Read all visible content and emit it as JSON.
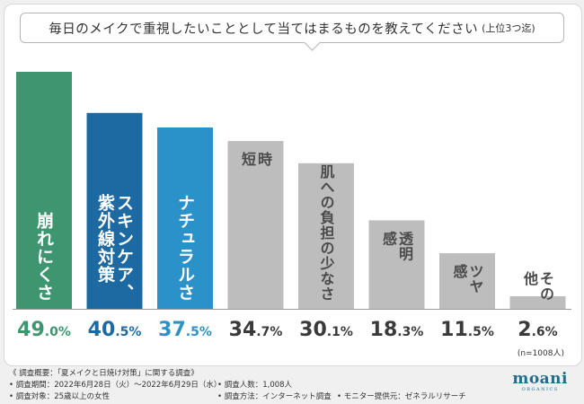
{
  "title": {
    "main": "毎日のメイクで重視したいこととして当てはまるものを教えてください",
    "note": "(上位3つ迄)"
  },
  "chart_data": {
    "type": "bar",
    "title": "毎日のメイクで重視したいこととして当てはまるものを教えてください(上位3つ迄)",
    "categories": [
      "崩れにくさ",
      "スキンケア、紫外線対策",
      "ナチュラルさ",
      "時短",
      "肌への負担の少なさ",
      "透明感",
      "ツヤ感",
      "その他"
    ],
    "label_columns": [
      [
        "崩れにくさ"
      ],
      [
        "スキンケア、",
        "紫外線対策"
      ],
      [
        "ナチュラルさ"
      ],
      [
        "時",
        "短"
      ],
      [
        "肌への負担の少なさ"
      ],
      [
        "透明",
        "感"
      ],
      [
        "ツヤ",
        "感"
      ],
      [
        "その",
        "他"
      ]
    ],
    "values": [
      49.0,
      40.5,
      37.5,
      34.7,
      30.1,
      18.3,
      11.5,
      2.6
    ],
    "value_labels": [
      [
        "49",
        ".0%"
      ],
      [
        "40",
        ".5%"
      ],
      [
        "37",
        ".5%"
      ],
      [
        "34",
        ".7%"
      ],
      [
        "30",
        ".1%"
      ],
      [
        "18",
        ".3%"
      ],
      [
        "11",
        ".5%"
      ],
      [
        "2",
        ".6%"
      ]
    ],
    "colors": [
      "#3d9670",
      "#1d6aa3",
      "#2a92c9",
      "#bdbdbd",
      "#bdbdbd",
      "#bdbdbd",
      "#bdbdbd",
      "#bdbdbd"
    ],
    "value_colors": [
      "#3d9670",
      "#1d6aa3",
      "#2a92c9",
      "#3a3a3a",
      "#3a3a3a",
      "#3a3a3a",
      "#3a3a3a",
      "#3a3a3a"
    ],
    "ylim": [
      0,
      49
    ],
    "n_label": "(n=1008人)"
  },
  "footer": {
    "survey_title": "《 調査概要：「夏メイクと日焼け対策」に関する調査》",
    "period": "• 調査期間：2022年6月28日（火）～2022年6月29日（水）",
    "respondents": "• 調査人数：1,008人",
    "target": "• 調査対象：25歳以上の女性",
    "method": "• 調査方法：インターネット調査",
    "provider": "• モニター提供元：ゼネラルリサーチ"
  },
  "logo": {
    "main": "moani",
    "sub": "ORGANICS"
  }
}
